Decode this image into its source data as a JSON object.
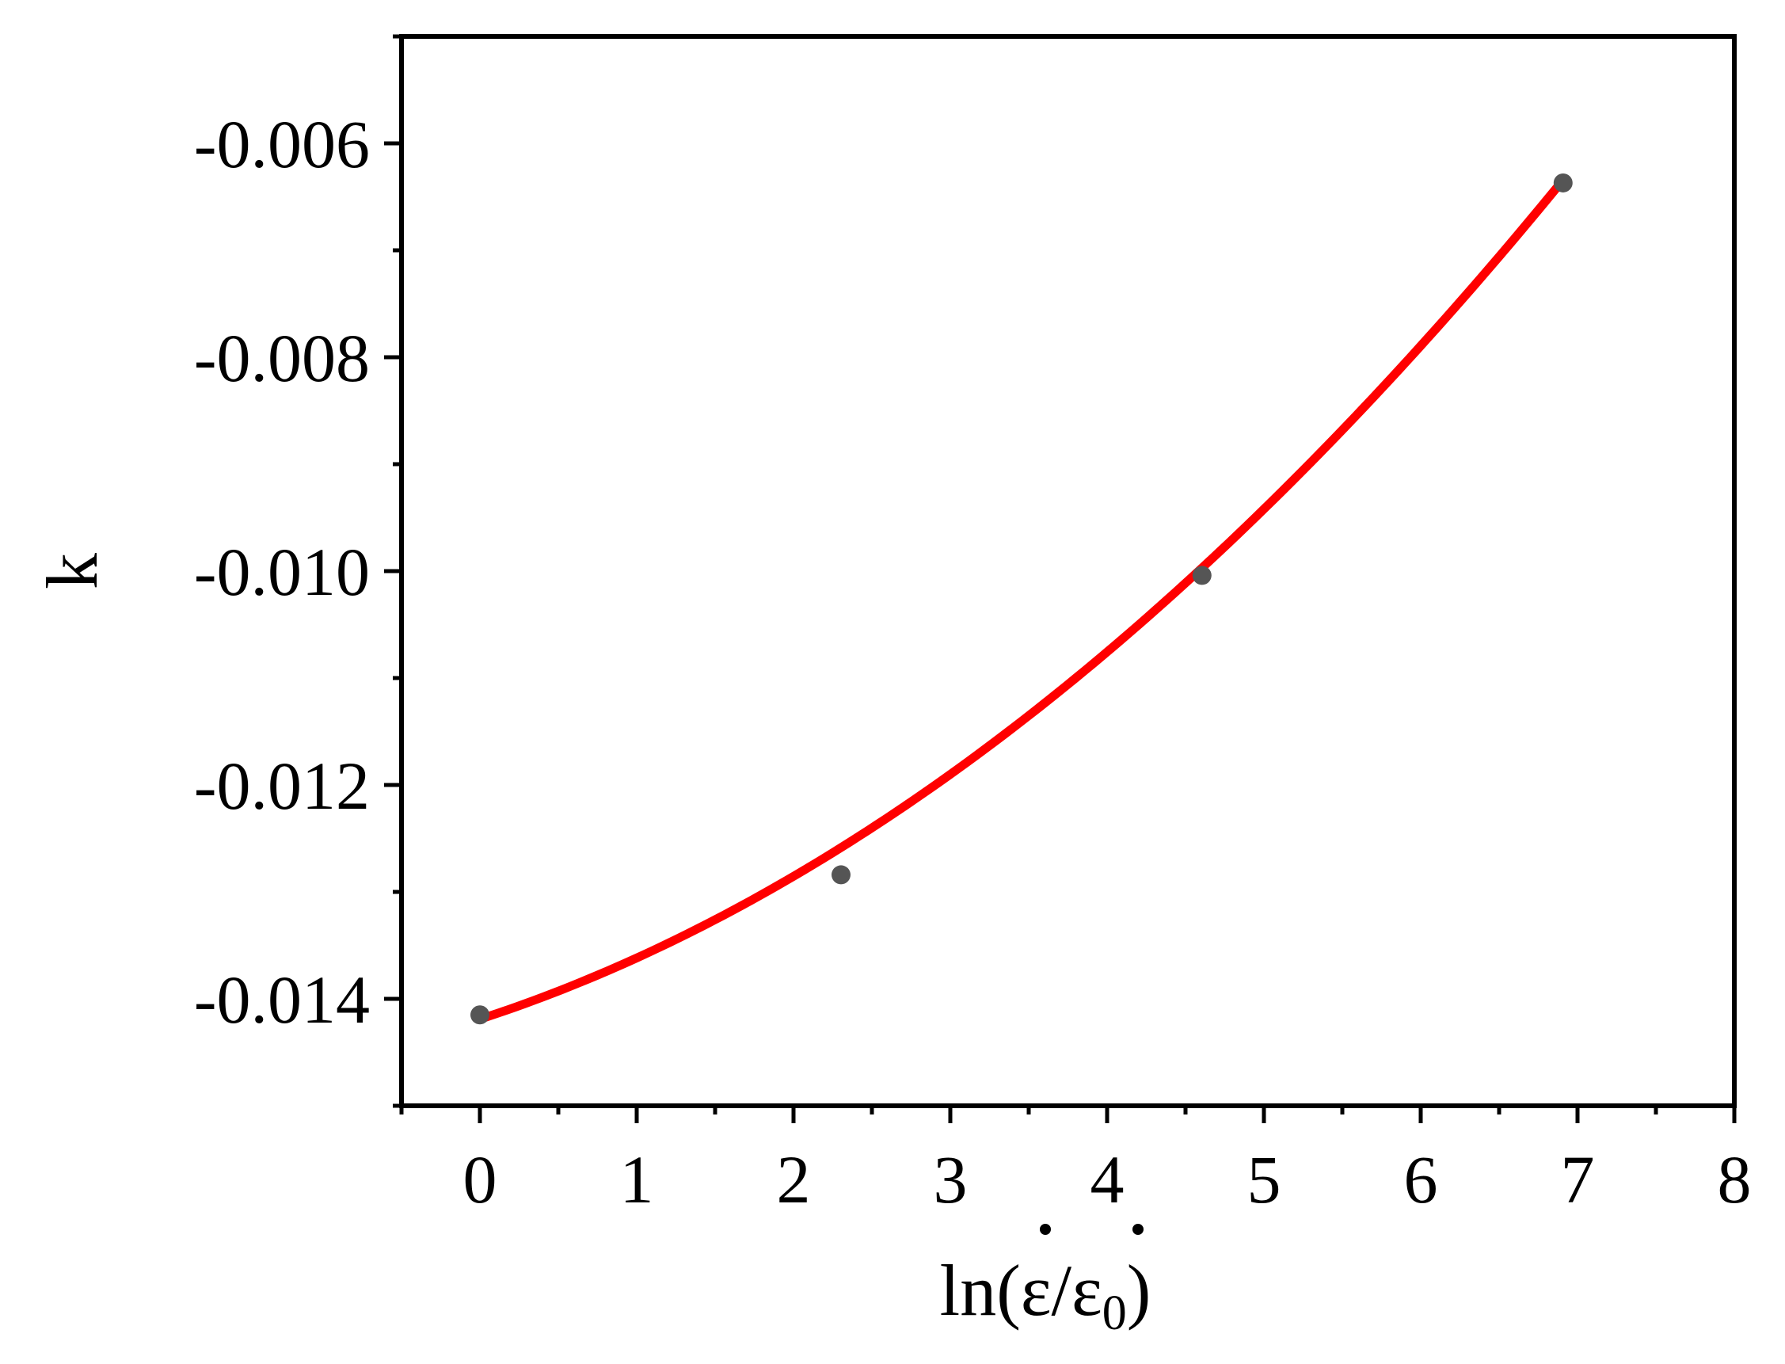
{
  "chart_data": {
    "type": "scatter",
    "title": "",
    "xlabel": {
      "prefix": "ln(",
      "numerator": "ε",
      "slash": "/",
      "denominator": "ε",
      "denominator_subscript": "0",
      "suffix": ")"
    },
    "ylabel": "k",
    "xlim": [
      -0.5,
      8
    ],
    "ylim": [
      -0.015,
      -0.005
    ],
    "x_ticks": [
      0,
      1,
      2,
      3,
      4,
      5,
      6,
      7,
      8
    ],
    "x_tick_labels": [
      "0",
      "1",
      "2",
      "3",
      "4",
      "5",
      "6",
      "7",
      "8"
    ],
    "y_ticks": [
      -0.014,
      -0.012,
      -0.01,
      -0.008,
      -0.006
    ],
    "y_tick_labels": [
      "-0.014",
      "-0.012",
      "-0.010",
      "-0.008",
      "-0.006"
    ],
    "grid": false,
    "series": [
      {
        "kind": "points",
        "x": [
          0,
          2.303,
          4.605,
          6.908
        ],
        "y": [
          -0.01415,
          -0.01284,
          -0.01004,
          -0.00637
        ],
        "color": "#555555"
      },
      {
        "kind": "fit-curve",
        "form": "quadratic",
        "coefficients": [
          -0.01419,
          0.000477,
          9.54e-05
        ],
        "x_range": [
          0,
          6.908
        ],
        "color": "#ff0000"
      }
    ]
  }
}
